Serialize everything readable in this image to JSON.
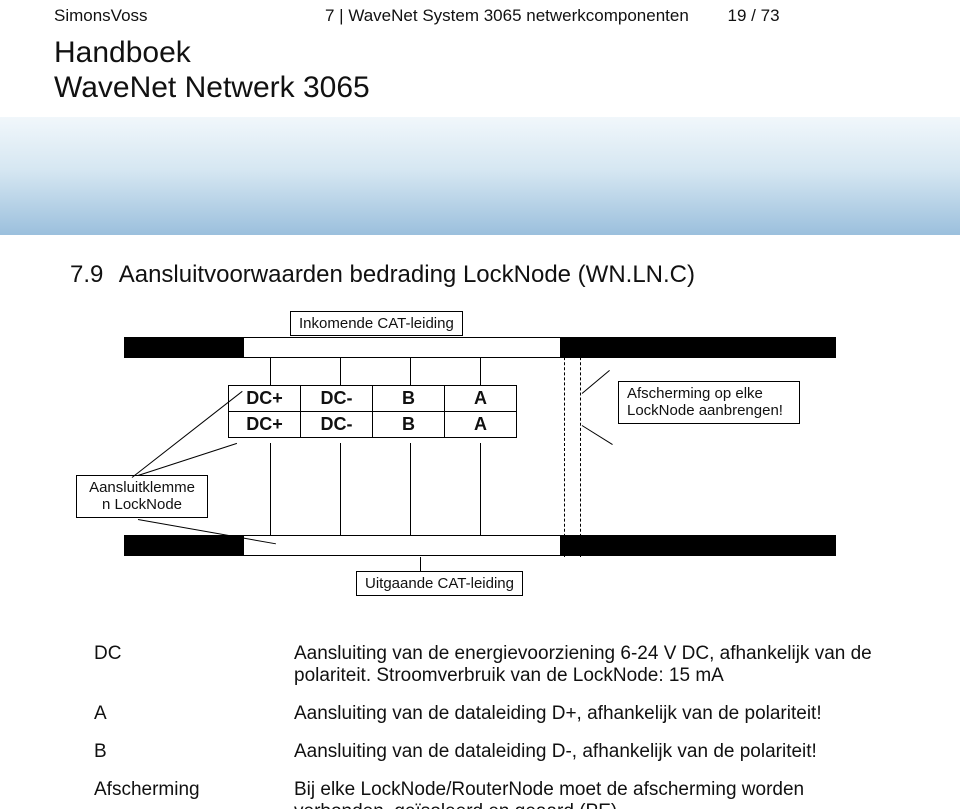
{
  "header": {
    "brand": "SimonsVoss",
    "breadcrumb": "7 | WaveNet System 3065 netwerkcomponenten",
    "page": "19 / 73",
    "title_l1": "Handboek",
    "title_l2": "WaveNet Netwerk 3065"
  },
  "section": {
    "num": "7.9",
    "title": "Aansluitvoorwaarden bedrading LockNode (WN.LN.C)"
  },
  "diagram": {
    "incoming_label": "Inkomende CAT-leiding",
    "outgoing_label": "Uitgaande CAT-leiding",
    "shield_label": "Afscherming op elke LockNode aanbrengen!",
    "klemme_label": "Aansluitklemme\nn LockNode",
    "terminal_rows": [
      [
        "DC+",
        "DC-",
        "B",
        "A"
      ],
      [
        "DC+",
        "DC-",
        "B",
        "A"
      ]
    ]
  },
  "defs": [
    {
      "k": "DC",
      "v": "Aansluiting van de energievoorziening 6-24 V DC, afhankelijk van de polariteit. Stroomverbruik van de LockNode: 15 mA"
    },
    {
      "k": "A",
      "v": "Aansluiting van de dataleiding D+, afhankelijk van de polariteit!"
    },
    {
      "k": "B",
      "v": "Aansluiting van de dataleiding D-, afhankelijk van de polariteit!"
    },
    {
      "k": "Afscherming",
      "v": "Bij elke LockNode/RouterNode moet de afscherming worden verbonden, geïsoleerd en geaard (PE)."
    }
  ],
  "colors": {
    "banner_top": "#f1f7fb",
    "banner_bot": "#9cc0dd",
    "text": "#111111",
    "line": "#000000"
  }
}
